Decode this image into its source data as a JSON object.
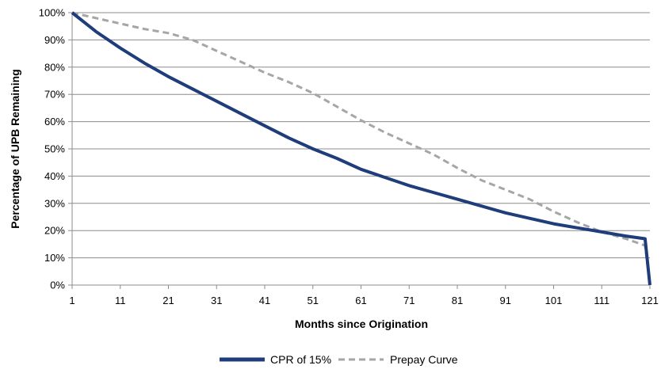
{
  "chart_data": {
    "type": "line",
    "title": "",
    "xlabel": "Months since Origination",
    "ylabel": "Percentage of UPB Remaining",
    "xlim": [
      1,
      121
    ],
    "ylim": [
      0,
      100
    ],
    "x_ticks": [
      1,
      11,
      21,
      31,
      41,
      51,
      61,
      71,
      81,
      91,
      101,
      111,
      121
    ],
    "x_tick_labels": [
      "1",
      "11",
      "21",
      "31",
      "41",
      "51",
      "61",
      "71",
      "81",
      "91",
      "101",
      "111",
      "121"
    ],
    "y_ticks": [
      0,
      10,
      20,
      30,
      40,
      50,
      60,
      70,
      80,
      90,
      100
    ],
    "y_tick_labels": [
      "0%",
      "10%",
      "20%",
      "30%",
      "40%",
      "50%",
      "60%",
      "70%",
      "80%",
      "90%",
      "100%"
    ],
    "grid": "horizontal",
    "legend": "bottom",
    "series": [
      {
        "name": "CPR of 15%",
        "color": "#1f3d7a",
        "style": "solid",
        "points": [
          [
            1,
            100
          ],
          [
            6,
            93
          ],
          [
            11,
            87
          ],
          [
            16,
            81.5
          ],
          [
            21,
            76.5
          ],
          [
            26,
            72
          ],
          [
            31,
            67.5
          ],
          [
            36,
            63
          ],
          [
            41,
            58.5
          ],
          [
            46,
            54
          ],
          [
            51,
            50
          ],
          [
            56,
            46.5
          ],
          [
            61,
            42.5
          ],
          [
            66,
            39.5
          ],
          [
            71,
            36.5
          ],
          [
            76,
            34
          ],
          [
            81,
            31.5
          ],
          [
            86,
            29
          ],
          [
            91,
            26.5
          ],
          [
            96,
            24.5
          ],
          [
            101,
            22.5
          ],
          [
            106,
            21
          ],
          [
            111,
            19.5
          ],
          [
            116,
            18
          ],
          [
            120,
            17
          ],
          [
            121,
            0
          ]
        ]
      },
      {
        "name": "Prepay Curve",
        "color": "#a6a6a6",
        "style": "dashed",
        "points": [
          [
            1,
            100
          ],
          [
            6,
            98
          ],
          [
            11,
            96
          ],
          [
            16,
            94
          ],
          [
            21,
            92.5
          ],
          [
            26,
            90
          ],
          [
            31,
            86
          ],
          [
            36,
            82
          ],
          [
            41,
            78
          ],
          [
            46,
            74.5
          ],
          [
            51,
            70.5
          ],
          [
            56,
            65.5
          ],
          [
            61,
            60.5
          ],
          [
            66,
            56
          ],
          [
            71,
            52
          ],
          [
            76,
            48
          ],
          [
            81,
            43
          ],
          [
            86,
            38.5
          ],
          [
            91,
            35
          ],
          [
            96,
            31.5
          ],
          [
            101,
            27
          ],
          [
            106,
            23
          ],
          [
            111,
            19.5
          ],
          [
            116,
            17
          ],
          [
            120,
            14.5
          ],
          [
            121,
            0
          ]
        ]
      }
    ]
  }
}
